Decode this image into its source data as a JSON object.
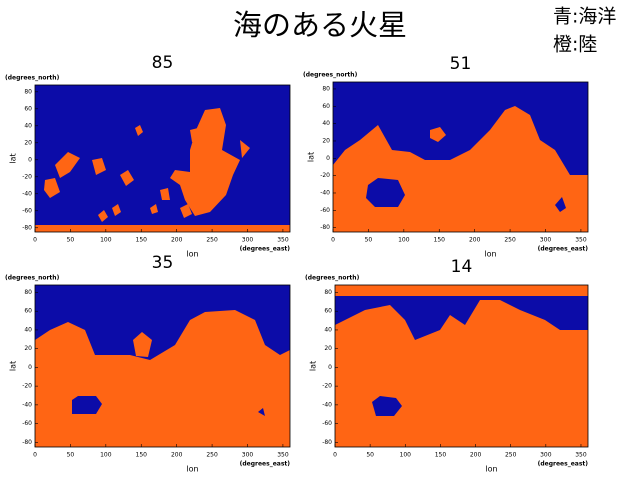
{
  "slide": {
    "title": "海のある火星",
    "legend": [
      "青:海洋",
      "橙:陸"
    ]
  },
  "chart_data": [
    {
      "type": "map",
      "title": "85",
      "xlabel": "lon",
      "ylabel": "lat",
      "xunit": "(degrees_east)",
      "yunit": "(degrees_north)",
      "xlim": [
        0,
        360
      ],
      "ylim": [
        -85,
        88
      ],
      "xticks": [
        0,
        50,
        100,
        150,
        200,
        250,
        300,
        350
      ],
      "yticks": [
        -80,
        -60,
        -40,
        -20,
        0,
        20,
        40,
        60,
        80
      ],
      "colors": {
        "ocean": "#0c0ca8",
        "land": "#ff6514"
      }
    },
    {
      "type": "map",
      "title": "51",
      "xlabel": "lon",
      "ylabel": "lat",
      "xunit": "(degrees_east)",
      "yunit": "(degrees_north)",
      "xlim": [
        0,
        360
      ],
      "ylim": [
        -85,
        88
      ],
      "xticks": [
        0,
        50,
        100,
        150,
        200,
        250,
        300,
        350
      ],
      "yticks": [
        -80,
        -60,
        -40,
        -20,
        0,
        20,
        40,
        60,
        80
      ],
      "colors": {
        "ocean": "#0c0ca8",
        "land": "#ff6514"
      }
    },
    {
      "type": "map",
      "title": "35",
      "xlabel": "lon",
      "ylabel": "lat",
      "xunit": "(degrees_east)",
      "yunit": "(degrees_north)",
      "xlim": [
        0,
        360
      ],
      "ylim": [
        -85,
        88
      ],
      "xticks": [
        0,
        50,
        100,
        150,
        200,
        250,
        300,
        350
      ],
      "yticks": [
        -80,
        -60,
        -40,
        -20,
        0,
        20,
        40,
        60,
        80
      ],
      "colors": {
        "ocean": "#0c0ca8",
        "land": "#ff6514"
      }
    },
    {
      "type": "map",
      "title": "14",
      "xlabel": "lon",
      "ylabel": "lat",
      "xunit": "(degrees_east)",
      "yunit": "(degrees_north)",
      "xlim": [
        0,
        360
      ],
      "ylim": [
        -85,
        88
      ],
      "xticks": [
        0,
        50,
        100,
        150,
        200,
        250,
        300,
        350
      ],
      "yticks": [
        -80,
        -60,
        -40,
        -20,
        0,
        20,
        40,
        60,
        80
      ],
      "colors": {
        "ocean": "#0c0ca8",
        "land": "#ff6514"
      }
    }
  ]
}
